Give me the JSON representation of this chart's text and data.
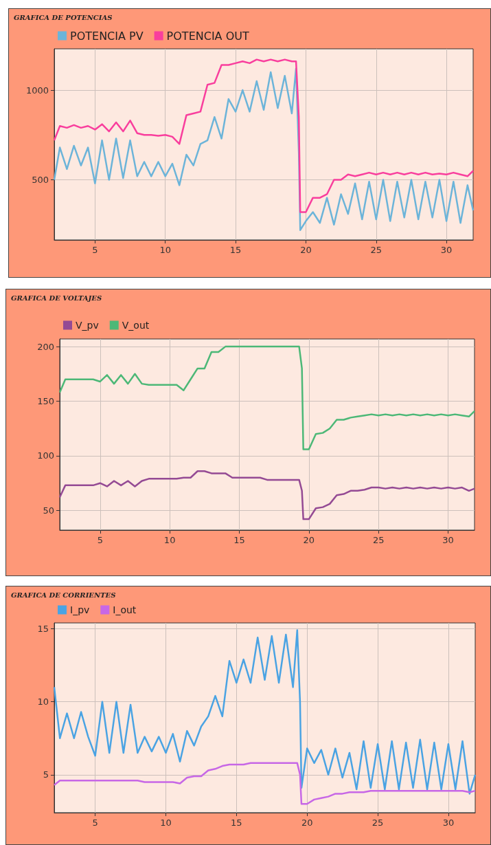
{
  "chart_data": [
    {
      "type": "line",
      "title": "GRAFICA DE POTENCIAS",
      "legend": "top left",
      "grid": true,
      "x": [
        2.1,
        2.5,
        3,
        3.5,
        4,
        4.5,
        5,
        5.5,
        6,
        6.5,
        7,
        7.5,
        8,
        8.5,
        9,
        9.5,
        10,
        10.5,
        11,
        11.5,
        12,
        12.5,
        13,
        13.5,
        14,
        14.5,
        15,
        15.5,
        16,
        16.5,
        17,
        17.5,
        18,
        18.5,
        19,
        19.3,
        19.5,
        19.6,
        20,
        20.5,
        21,
        21.5,
        22,
        22.5,
        23,
        23.5,
        24,
        24.5,
        25,
        25.5,
        26,
        26.5,
        27,
        27.5,
        28,
        28.5,
        29,
        29.5,
        30,
        30.5,
        31,
        31.5,
        31.9
      ],
      "xlim": [
        2.1,
        31.9
      ],
      "xticks": [
        5,
        10,
        15,
        20,
        25,
        30
      ],
      "ylim": [
        165,
        1230
      ],
      "yticks": [
        500,
        1000
      ],
      "series": [
        {
          "name": "POTENCIA PV",
          "color": "#6cb4d9",
          "values": [
            500,
            680,
            560,
            690,
            580,
            680,
            480,
            720,
            500,
            730,
            510,
            720,
            520,
            600,
            520,
            600,
            520,
            590,
            470,
            640,
            580,
            700,
            720,
            850,
            730,
            950,
            880,
            1000,
            880,
            1050,
            890,
            1100,
            900,
            1080,
            870,
            1120,
            650,
            220,
            270,
            320,
            260,
            400,
            250,
            420,
            310,
            480,
            280,
            490,
            280,
            500,
            270,
            490,
            290,
            500,
            280,
            490,
            290,
            500,
            270,
            490,
            260,
            470,
            330
          ]
        },
        {
          "name": "POTENCIA OUT",
          "color": "#f93e9d",
          "values": [
            720,
            800,
            790,
            805,
            790,
            800,
            780,
            810,
            770,
            820,
            770,
            830,
            760,
            750,
            750,
            745,
            750,
            740,
            700,
            860,
            870,
            880,
            1030,
            1040,
            1140,
            1140,
            1150,
            1160,
            1150,
            1170,
            1160,
            1170,
            1160,
            1170,
            1160,
            1160,
            850,
            320,
            320,
            400,
            400,
            420,
            500,
            500,
            530,
            520,
            530,
            540,
            530,
            540,
            530,
            540,
            530,
            540,
            530,
            540,
            530,
            535,
            530,
            540,
            530,
            520,
            550
          ]
        }
      ]
    },
    {
      "type": "line",
      "title": "GRAFICA DE VOLTAJES",
      "legend": "top left",
      "grid": true,
      "x": [
        2.1,
        2.5,
        3,
        3.5,
        4,
        4.5,
        5,
        5.5,
        6,
        6.5,
        7,
        7.5,
        8,
        8.5,
        9,
        9.5,
        10,
        10.5,
        11,
        11.5,
        12,
        12.5,
        13,
        13.5,
        14,
        14.5,
        15,
        15.5,
        16,
        16.5,
        17,
        17.5,
        18,
        18.5,
        19,
        19.3,
        19.5,
        19.6,
        20,
        20.5,
        21,
        21.5,
        22,
        22.5,
        23,
        23.5,
        24,
        24.5,
        25,
        25.5,
        26,
        26.5,
        27,
        27.5,
        28,
        28.5,
        29,
        29.5,
        30,
        30.5,
        31,
        31.5,
        31.9
      ],
      "xlim": [
        2.1,
        31.9
      ],
      "xticks": [
        5,
        10,
        15,
        20,
        25,
        30
      ],
      "ylim": [
        32,
        207
      ],
      "yticks": [
        50,
        100,
        150,
        200
      ],
      "series": [
        {
          "name": "V_pv",
          "color": "#944a94",
          "values": [
            62,
            73,
            73,
            73,
            73,
            73,
            75,
            72,
            77,
            73,
            77,
            72,
            77,
            79,
            79,
            79,
            79,
            79,
            80,
            80,
            86,
            86,
            84,
            84,
            84,
            80,
            80,
            80,
            80,
            80,
            78,
            78,
            78,
            78,
            78,
            78,
            68,
            42,
            42,
            52,
            53,
            56,
            64,
            65,
            68,
            68,
            69,
            71,
            71,
            70,
            71,
            70,
            71,
            70,
            71,
            70,
            71,
            70,
            71,
            70,
            71,
            68,
            70
          ]
        },
        {
          "name": "V_out",
          "color": "#4cb877",
          "values": [
            158,
            170,
            170,
            170,
            170,
            170,
            168,
            174,
            166,
            174,
            166,
            175,
            166,
            165,
            165,
            165,
            165,
            165,
            160,
            170,
            180,
            180,
            195,
            195,
            200,
            200,
            200,
            200,
            200,
            200,
            200,
            200,
            200,
            200,
            200,
            200,
            180,
            106,
            106,
            120,
            121,
            125,
            133,
            133,
            135,
            136,
            137,
            138,
            137,
            138,
            137,
            138,
            137,
            138,
            137,
            138,
            137,
            138,
            137,
            138,
            137,
            136,
            141
          ]
        }
      ]
    },
    {
      "type": "line",
      "title": "GRAFICA DE CORRIENTES",
      "legend": "top left",
      "grid": true,
      "x": [
        2.1,
        2.5,
        3,
        3.5,
        4,
        4.5,
        5,
        5.5,
        6,
        6.5,
        7,
        7.5,
        8,
        8.5,
        9,
        9.5,
        10,
        10.5,
        11,
        11.5,
        12,
        12.5,
        13,
        13.5,
        14,
        14.5,
        15,
        15.5,
        16,
        16.5,
        17,
        17.5,
        18,
        18.5,
        19,
        19.3,
        19.5,
        19.6,
        20,
        20.5,
        21,
        21.5,
        22,
        22.5,
        23,
        23.5,
        24,
        24.5,
        25,
        25.5,
        26,
        26.5,
        27,
        27.5,
        28,
        28.5,
        29,
        29.5,
        30,
        30.5,
        31,
        31.5,
        31.9
      ],
      "xlim": [
        2.1,
        31.9
      ],
      "xticks": [
        5,
        10,
        15,
        20,
        25,
        30
      ],
      "ylim": [
        2.4,
        15.4
      ],
      "yticks": [
        5,
        10,
        15
      ],
      "series": [
        {
          "name": "I_pv",
          "color": "#4aa3e3",
          "values": [
            11,
            7.5,
            9.2,
            7.5,
            9.3,
            7.6,
            6.3,
            10,
            6.5,
            10,
            6.5,
            9.8,
            6.5,
            7.6,
            6.6,
            7.6,
            6.5,
            7.8,
            5.9,
            8,
            7,
            8.3,
            9,
            10.4,
            9,
            12.8,
            11.3,
            12.9,
            11.3,
            14.4,
            11.5,
            14.5,
            11.3,
            14.6,
            11,
            14.9,
            10,
            4.1,
            6.8,
            5.8,
            6.7,
            5,
            6.8,
            4.8,
            6.5,
            4,
            7.3,
            4.1,
            7.1,
            4,
            7.3,
            4,
            7.2,
            4.1,
            7.4,
            4,
            7.2,
            4,
            7.1,
            4,
            7.3,
            3.7,
            5
          ]
        },
        {
          "name": "I_out",
          "color": "#c767e6",
          "values": [
            4.3,
            4.6,
            4.6,
            4.6,
            4.6,
            4.6,
            4.6,
            4.6,
            4.6,
            4.6,
            4.6,
            4.6,
            4.6,
            4.5,
            4.5,
            4.5,
            4.5,
            4.5,
            4.4,
            4.8,
            4.9,
            4.9,
            5.3,
            5.4,
            5.6,
            5.7,
            5.7,
            5.7,
            5.8,
            5.8,
            5.8,
            5.8,
            5.8,
            5.8,
            5.8,
            5.8,
            5,
            3,
            3,
            3.3,
            3.4,
            3.5,
            3.7,
            3.7,
            3.8,
            3.8,
            3.8,
            3.9,
            3.9,
            3.9,
            3.9,
            3.9,
            3.9,
            3.9,
            3.9,
            3.9,
            3.9,
            3.9,
            3.9,
            3.9,
            3.9,
            3.8,
            3.9
          ]
        }
      ]
    }
  ]
}
